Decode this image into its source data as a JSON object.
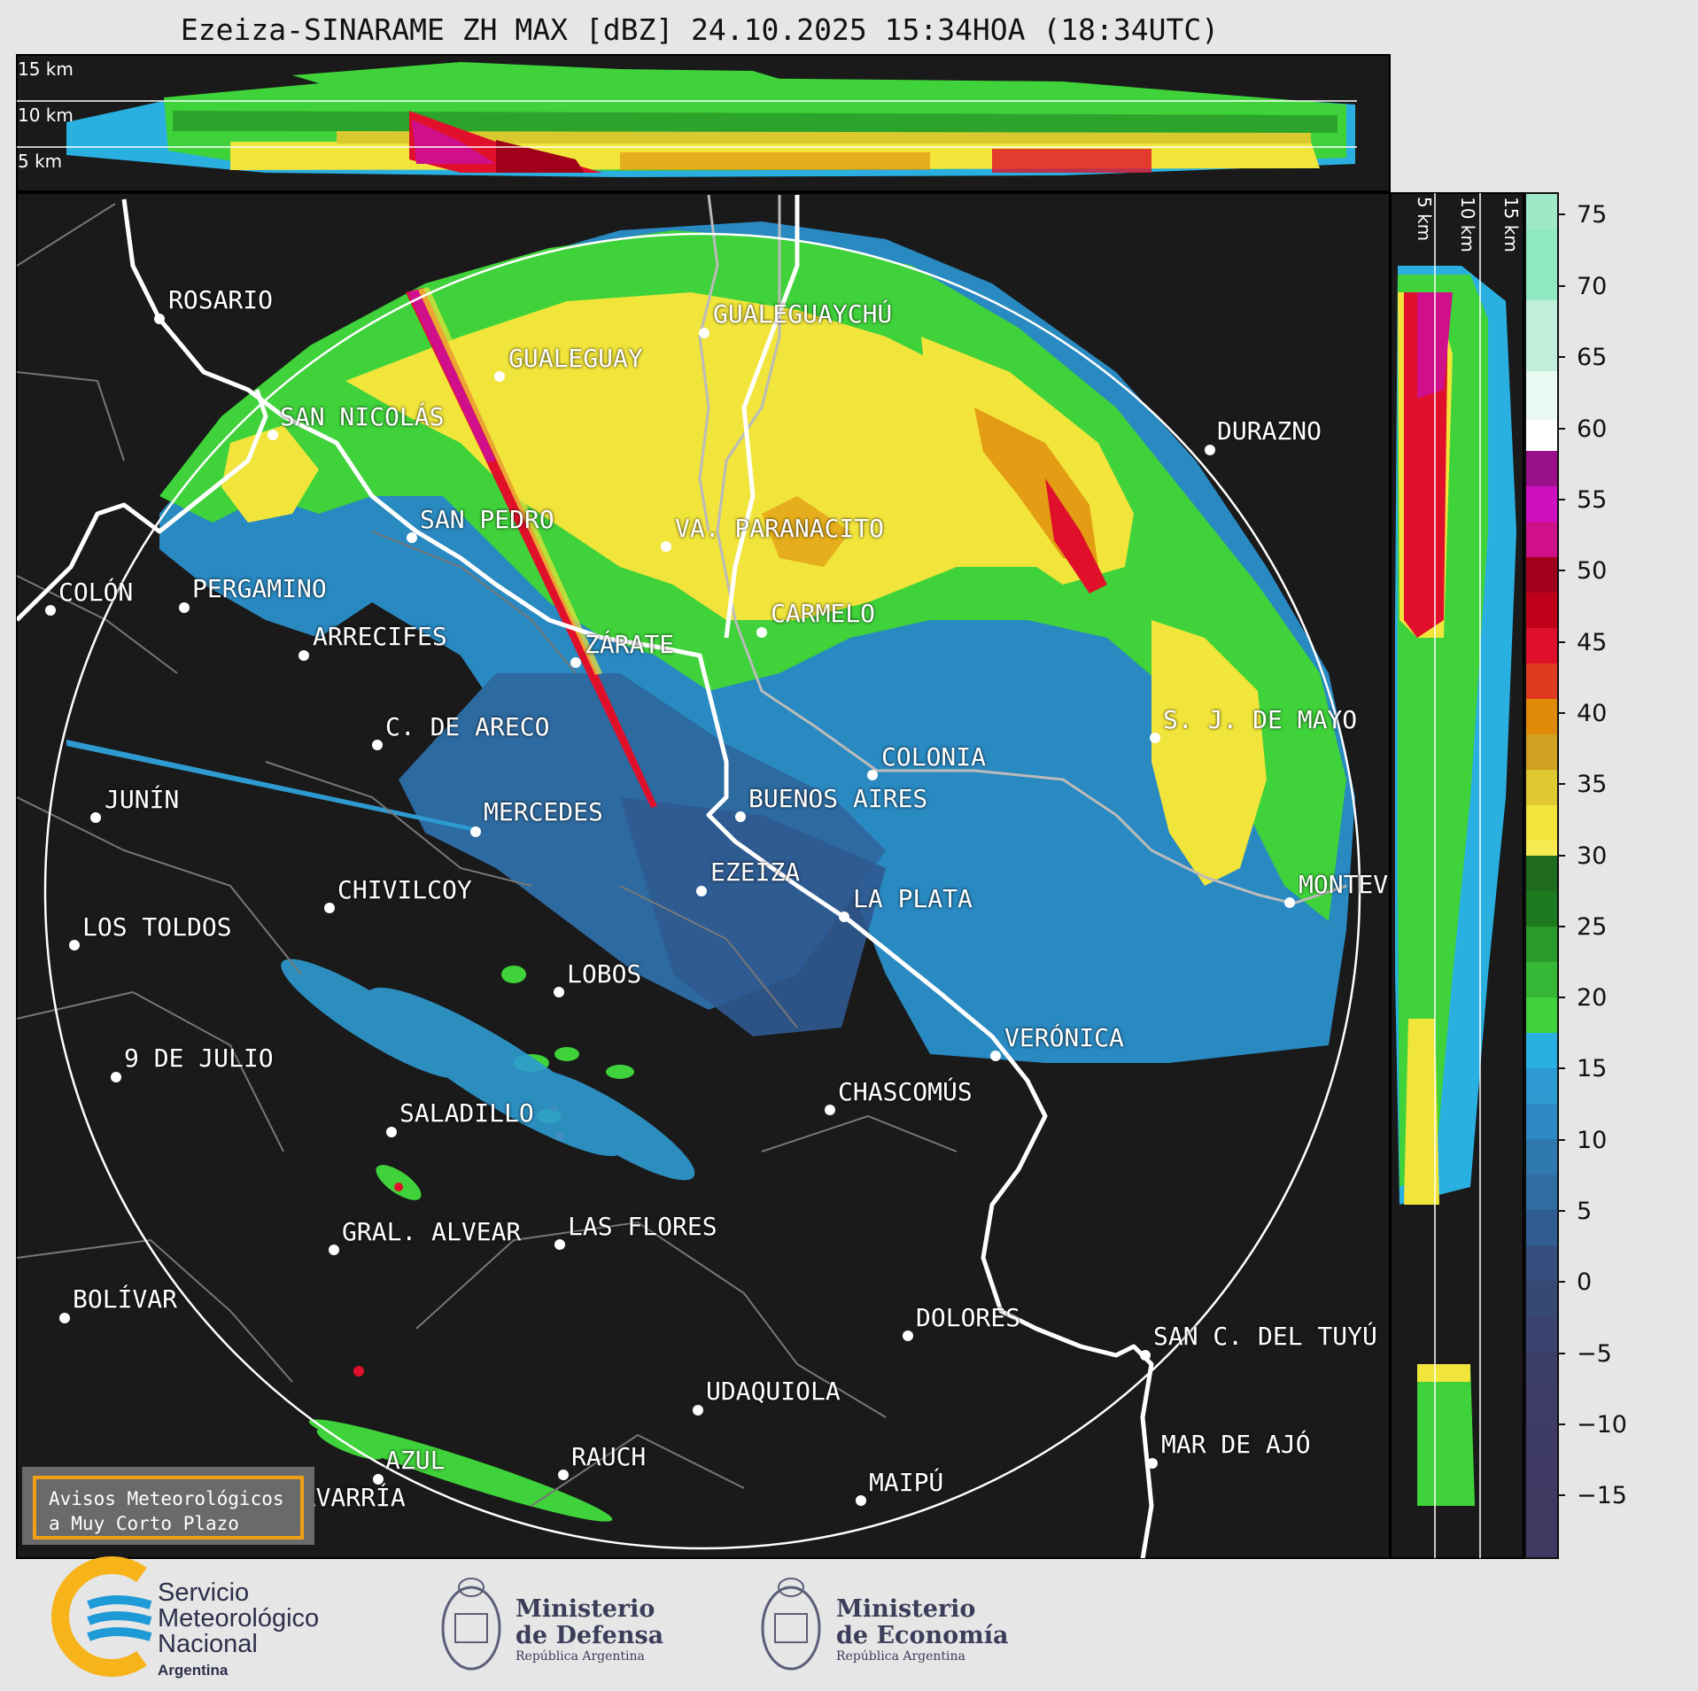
{
  "title": "Ezeiza-SINARAME ZH MAX [dBZ] 24.10.2025 15:34HOA (18:34UTC)",
  "variable": "ZH MAX",
  "units": "dBZ",
  "radar": "Ezeiza-SINARAME",
  "height_labels": {
    "top": [
      "15 km",
      "10 km",
      "5 km"
    ],
    "side": [
      "5 km",
      "10 km",
      "15 km"
    ]
  },
  "colorbar": {
    "ticks": [
      "75",
      "70",
      "65",
      "60",
      "55",
      "50",
      "45",
      "40",
      "35",
      "30",
      "25",
      "20",
      "15",
      "10",
      "5",
      "0",
      "−5",
      "−10",
      "−15"
    ],
    "colors": {
      "neg": "#3c3f6a",
      "low": "#2f6da3",
      "mid": "#2d9bd1",
      "cyan": "#2ab0e0",
      "green": "#3fd23a",
      "dgreen": "#1e7a1e",
      "yellow": "#f1e43a",
      "orange": "#e08a0a",
      "red": "#e0102a",
      "dred": "#a0001a",
      "magenta": "#d0108a",
      "purple": "#9a108a",
      "white": "#ffffff",
      "mint": "#8fe8c0"
    }
  },
  "cities": [
    {
      "name": "ROSARIO"
    },
    {
      "name": "GUALEGUAYCHÚ"
    },
    {
      "name": "GUALEGUAY"
    },
    {
      "name": "SAN NICOLÁS"
    },
    {
      "name": "DURAZNO"
    },
    {
      "name": "SAN PEDRO"
    },
    {
      "name": "VA. PARANACITO"
    },
    {
      "name": "COLÓN"
    },
    {
      "name": "PERGAMINO"
    },
    {
      "name": "CARMELO"
    },
    {
      "name": "ARRECIFES"
    },
    {
      "name": "ZÁRATE"
    },
    {
      "name": "C. DE ARECO"
    },
    {
      "name": "S. J. DE MAYO"
    },
    {
      "name": "COLONIA"
    },
    {
      "name": "JUNÍN"
    },
    {
      "name": "BUENOS AIRES"
    },
    {
      "name": "MERCEDES"
    },
    {
      "name": "EZEIZA"
    },
    {
      "name": "CHIVILCOY"
    },
    {
      "name": "MONTEV"
    },
    {
      "name": "LA PLATA"
    },
    {
      "name": "LOS TOLDOS"
    },
    {
      "name": "LOBOS"
    },
    {
      "name": "VERÓNICA"
    },
    {
      "name": "9 DE JULIO"
    },
    {
      "name": "CHASCOMÚS"
    },
    {
      "name": "SALADILLO"
    },
    {
      "name": "GRAL. ALVEAR"
    },
    {
      "name": "LAS FLORES"
    },
    {
      "name": "BOLÍVAR"
    },
    {
      "name": "DOLORES"
    },
    {
      "name": "SAN C. DEL TUYÚ"
    },
    {
      "name": "UDAQUIOLA"
    },
    {
      "name": "MAR DE AJÓ"
    },
    {
      "name": "AZUL"
    },
    {
      "name": "RAUCH"
    },
    {
      "name": "OLAVARRÍA"
    },
    {
      "name": "MAIPÚ"
    }
  ],
  "notice": {
    "line1": "Avisos Meteorológicos",
    "line2": "a Muy Corto Plazo"
  },
  "logos": {
    "smn": {
      "line1": "Servicio",
      "line2": "Meteorológico",
      "line3": "Nacional",
      "country": "Argentina"
    },
    "defensa": {
      "line1": "Ministerio",
      "line2": "de Defensa",
      "sub": "República Argentina"
    },
    "economia": {
      "line1": "Ministerio",
      "line2": "de Economía",
      "sub": "República Argentina"
    }
  }
}
